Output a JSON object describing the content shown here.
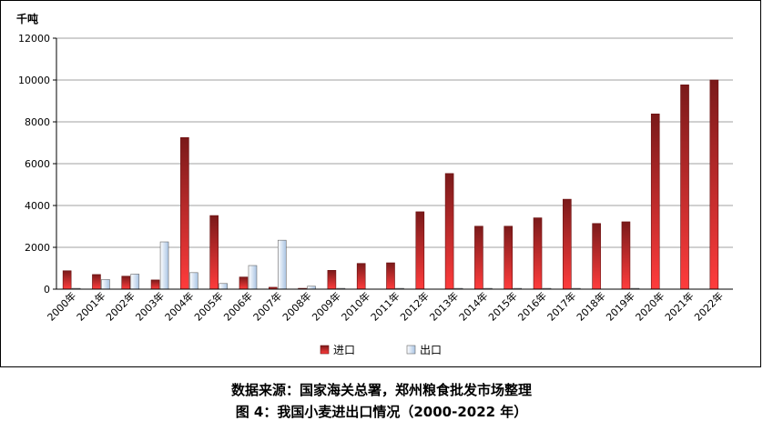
{
  "chart_data": {
    "type": "bar",
    "unit_label": "千吨",
    "ylim": [
      0,
      12000
    ],
    "yticks": [
      0,
      2000,
      4000,
      6000,
      8000,
      10000,
      12000
    ],
    "grid": true,
    "legend_position": "bottom",
    "categories": [
      "2000年",
      "2001年",
      "2002年",
      "2003年",
      "2004年",
      "2005年",
      "2006年",
      "2007年",
      "2008年",
      "2009年",
      "2010年",
      "2011年",
      "2012年",
      "2013年",
      "2014年",
      "2015年",
      "2016年",
      "2017年",
      "2018年",
      "2019年",
      "2020年",
      "2021年",
      "2022年"
    ],
    "series": [
      {
        "name": "进口",
        "color": "#e53030",
        "values": [
          880,
          700,
          620,
          440,
          7250,
          3520,
          580,
          90,
          40,
          900,
          1230,
          1260,
          3700,
          5530,
          3010,
          3010,
          3410,
          4300,
          3140,
          3220,
          8380,
          9770,
          10000
        ]
      },
      {
        "name": "出口",
        "color": "#c5d9ef",
        "values": [
          40,
          460,
          720,
          2260,
          790,
          270,
          1130,
          2340,
          140,
          40,
          0,
          40,
          0,
          40,
          40,
          40,
          40,
          40,
          0,
          40,
          0,
          0,
          0
        ]
      }
    ]
  },
  "captions": {
    "source": "数据来源：国家海关总署，郑州粮食批发市场整理",
    "figure_title": "图 4：我国小麦进出口情况（2000-2022 年）"
  }
}
